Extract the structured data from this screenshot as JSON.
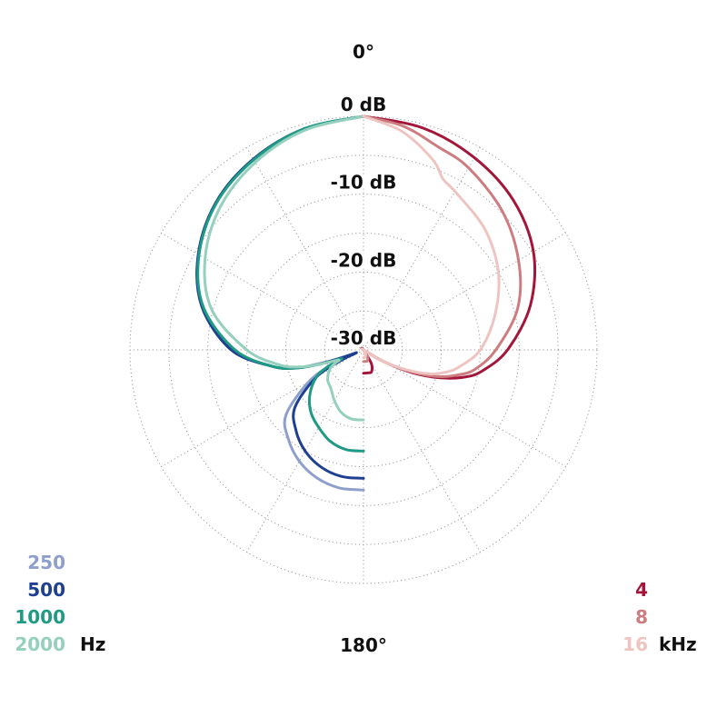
{
  "chart_data": {
    "type": "polar",
    "title": "",
    "angle_labels": {
      "top": "0°",
      "bottom": "180°"
    },
    "ring_labels": [
      "0 dB",
      "-10 dB",
      "-20 dB",
      "-30 dB"
    ],
    "radial_range_db": [
      -30,
      0
    ],
    "grid": true,
    "legend_low": {
      "placement": "bottom-left",
      "unit": "Hz",
      "entries": [
        {
          "label": "250",
          "color": "#8e9fcc"
        },
        {
          "label": "500",
          "color": "#1f3f91"
        },
        {
          "label": "1000",
          "color": "#1f9a84"
        },
        {
          "label": "2000",
          "color": "#94d0bd"
        }
      ]
    },
    "legend_high": {
      "placement": "bottom-right",
      "unit": "kHz",
      "entries": [
        {
          "label": "4",
          "color": "#a3163a"
        },
        {
          "label": "8",
          "color": "#cd7c80"
        },
        {
          "label": "16",
          "color": "#eec4c1"
        }
      ]
    },
    "series": [
      {
        "name": "250",
        "color": "#8e9fcc",
        "side": "left",
        "points": [
          [
            0,
            0
          ],
          [
            15,
            -0.6
          ],
          [
            30,
            -1.7
          ],
          [
            45,
            -3.2
          ],
          [
            60,
            -5.5
          ],
          [
            75,
            -8.5
          ],
          [
            90,
            -13
          ],
          [
            100,
            -18
          ],
          [
            105,
            -21
          ],
          [
            108,
            -25
          ],
          [
            110,
            -28
          ],
          [
            112,
            -29
          ],
          [
            115,
            -26
          ],
          [
            120,
            -22
          ],
          [
            130,
            -17
          ],
          [
            140,
            -15
          ],
          [
            150,
            -13.5
          ],
          [
            160,
            -12.5
          ],
          [
            170,
            -12
          ],
          [
            180,
            -12
          ]
        ]
      },
      {
        "name": "500",
        "color": "#1f3f91",
        "side": "left",
        "points": [
          [
            0,
            0
          ],
          [
            15,
            -0.6
          ],
          [
            30,
            -1.7
          ],
          [
            45,
            -3.2
          ],
          [
            60,
            -5.5
          ],
          [
            75,
            -8.5
          ],
          [
            90,
            -13
          ],
          [
            100,
            -18
          ],
          [
            105,
            -21
          ],
          [
            108,
            -24
          ],
          [
            110,
            -27
          ],
          [
            112,
            -29
          ],
          [
            115,
            -27
          ],
          [
            120,
            -23
          ],
          [
            130,
            -18.5
          ],
          [
            140,
            -16.5
          ],
          [
            150,
            -15
          ],
          [
            160,
            -14
          ],
          [
            170,
            -13.5
          ],
          [
            180,
            -13.5
          ]
        ]
      },
      {
        "name": "1000",
        "color": "#1f9a84",
        "side": "left",
        "points": [
          [
            0,
            0
          ],
          [
            15,
            -0.6
          ],
          [
            30,
            -1.8
          ],
          [
            45,
            -3.3
          ],
          [
            60,
            -5.6
          ],
          [
            75,
            -8.7
          ],
          [
            90,
            -13.5
          ],
          [
            100,
            -18
          ],
          [
            105,
            -21
          ],
          [
            108,
            -24
          ],
          [
            112,
            -27
          ],
          [
            115,
            -25
          ],
          [
            120,
            -23
          ],
          [
            130,
            -21
          ],
          [
            140,
            -19.5
          ],
          [
            150,
            -18.5
          ],
          [
            160,
            -17.5
          ],
          [
            170,
            -17
          ],
          [
            180,
            -17
          ]
        ]
      },
      {
        "name": "2000",
        "color": "#94d0bd",
        "side": "left",
        "points": [
          [
            0,
            0
          ],
          [
            15,
            -0.8
          ],
          [
            30,
            -2.2
          ],
          [
            45,
            -4
          ],
          [
            60,
            -6.5
          ],
          [
            75,
            -9.8
          ],
          [
            90,
            -15
          ],
          [
            100,
            -19
          ],
          [
            105,
            -21.5
          ],
          [
            108,
            -24
          ],
          [
            112,
            -26.5
          ],
          [
            115,
            -26
          ],
          [
            120,
            -25
          ],
          [
            130,
            -24
          ],
          [
            140,
            -23.5
          ],
          [
            150,
            -22.5
          ],
          [
            160,
            -21.5
          ],
          [
            170,
            -21
          ],
          [
            180,
            -21
          ]
        ]
      },
      {
        "name": "4",
        "color": "#a3163a",
        "side": "right",
        "points": [
          [
            0,
            0
          ],
          [
            15,
            -0.5
          ],
          [
            30,
            -1.5
          ],
          [
            45,
            -2.8
          ],
          [
            60,
            -4.8
          ],
          [
            75,
            -7.8
          ],
          [
            90,
            -11.5
          ],
          [
            100,
            -14.5
          ],
          [
            105,
            -16.5
          ],
          [
            110,
            -19.5
          ],
          [
            115,
            -23
          ],
          [
            120,
            -27
          ],
          [
            130,
            -30
          ],
          [
            140,
            -30
          ],
          [
            150,
            -28
          ],
          [
            160,
            -27
          ],
          [
            170,
            -27
          ],
          [
            180,
            -27
          ]
        ]
      },
      {
        "name": "8",
        "color": "#cd7c80",
        "side": "right",
        "points": [
          [
            0,
            0
          ],
          [
            10,
            -0.8
          ],
          [
            20,
            -2.2
          ],
          [
            30,
            -3
          ],
          [
            45,
            -4.8
          ],
          [
            60,
            -7
          ],
          [
            75,
            -9.5
          ],
          [
            90,
            -13
          ],
          [
            100,
            -15.5
          ],
          [
            105,
            -17.5
          ],
          [
            110,
            -20
          ],
          [
            115,
            -23.5
          ],
          [
            120,
            -27
          ],
          [
            130,
            -30
          ],
          [
            140,
            -30
          ],
          [
            150,
            -29
          ],
          [
            160,
            -28.5
          ],
          [
            170,
            -28.5
          ],
          [
            180,
            -28.5
          ]
        ]
      },
      {
        "name": "16",
        "color": "#eec4c1",
        "side": "right",
        "points": [
          [
            0,
            0
          ],
          [
            10,
            -1.5
          ],
          [
            20,
            -4
          ],
          [
            25,
            -5.8
          ],
          [
            30,
            -6.5
          ],
          [
            45,
            -8
          ],
          [
            60,
            -10
          ],
          [
            75,
            -12.5
          ],
          [
            90,
            -15
          ],
          [
            100,
            -17.5
          ],
          [
            105,
            -19
          ],
          [
            110,
            -21
          ],
          [
            115,
            -24
          ],
          [
            120,
            -27
          ],
          [
            130,
            -30
          ],
          [
            140,
            -30
          ],
          [
            150,
            -29.5
          ],
          [
            160,
            -29.2
          ],
          [
            170,
            -29
          ],
          [
            180,
            -29
          ]
        ]
      }
    ]
  }
}
